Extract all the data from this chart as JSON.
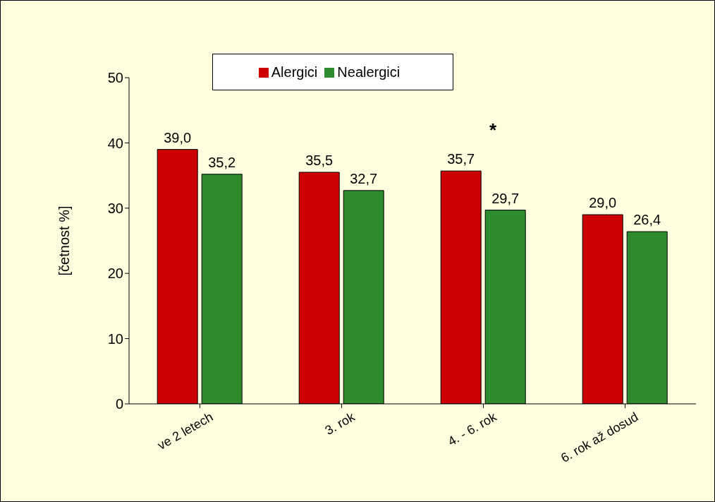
{
  "chart_data": {
    "type": "bar",
    "ylabel": "[četnost %]",
    "categories": [
      "ve 2 letech",
      "3. rok",
      "4. - 6. rok",
      "6. rok až dosud"
    ],
    "series": [
      {
        "name": "Alergici",
        "color": "#cc0000",
        "values": [
          39.0,
          35.5,
          35.7,
          29.0
        ],
        "value_labels": [
          "39,0",
          "35,5",
          "35,7",
          "29,0"
        ]
      },
      {
        "name": "Nealergici",
        "color": "#2e8b2e",
        "values": [
          35.2,
          32.7,
          29.7,
          26.4
        ],
        "value_labels": [
          "35,2",
          "32,7",
          "29,7",
          "26,4"
        ]
      }
    ],
    "ylim": [
      0,
      50
    ],
    "yticks": [
      0,
      10,
      20,
      30,
      40,
      50
    ],
    "grid": false,
    "legend": "top",
    "annotations": [
      "*"
    ]
  }
}
